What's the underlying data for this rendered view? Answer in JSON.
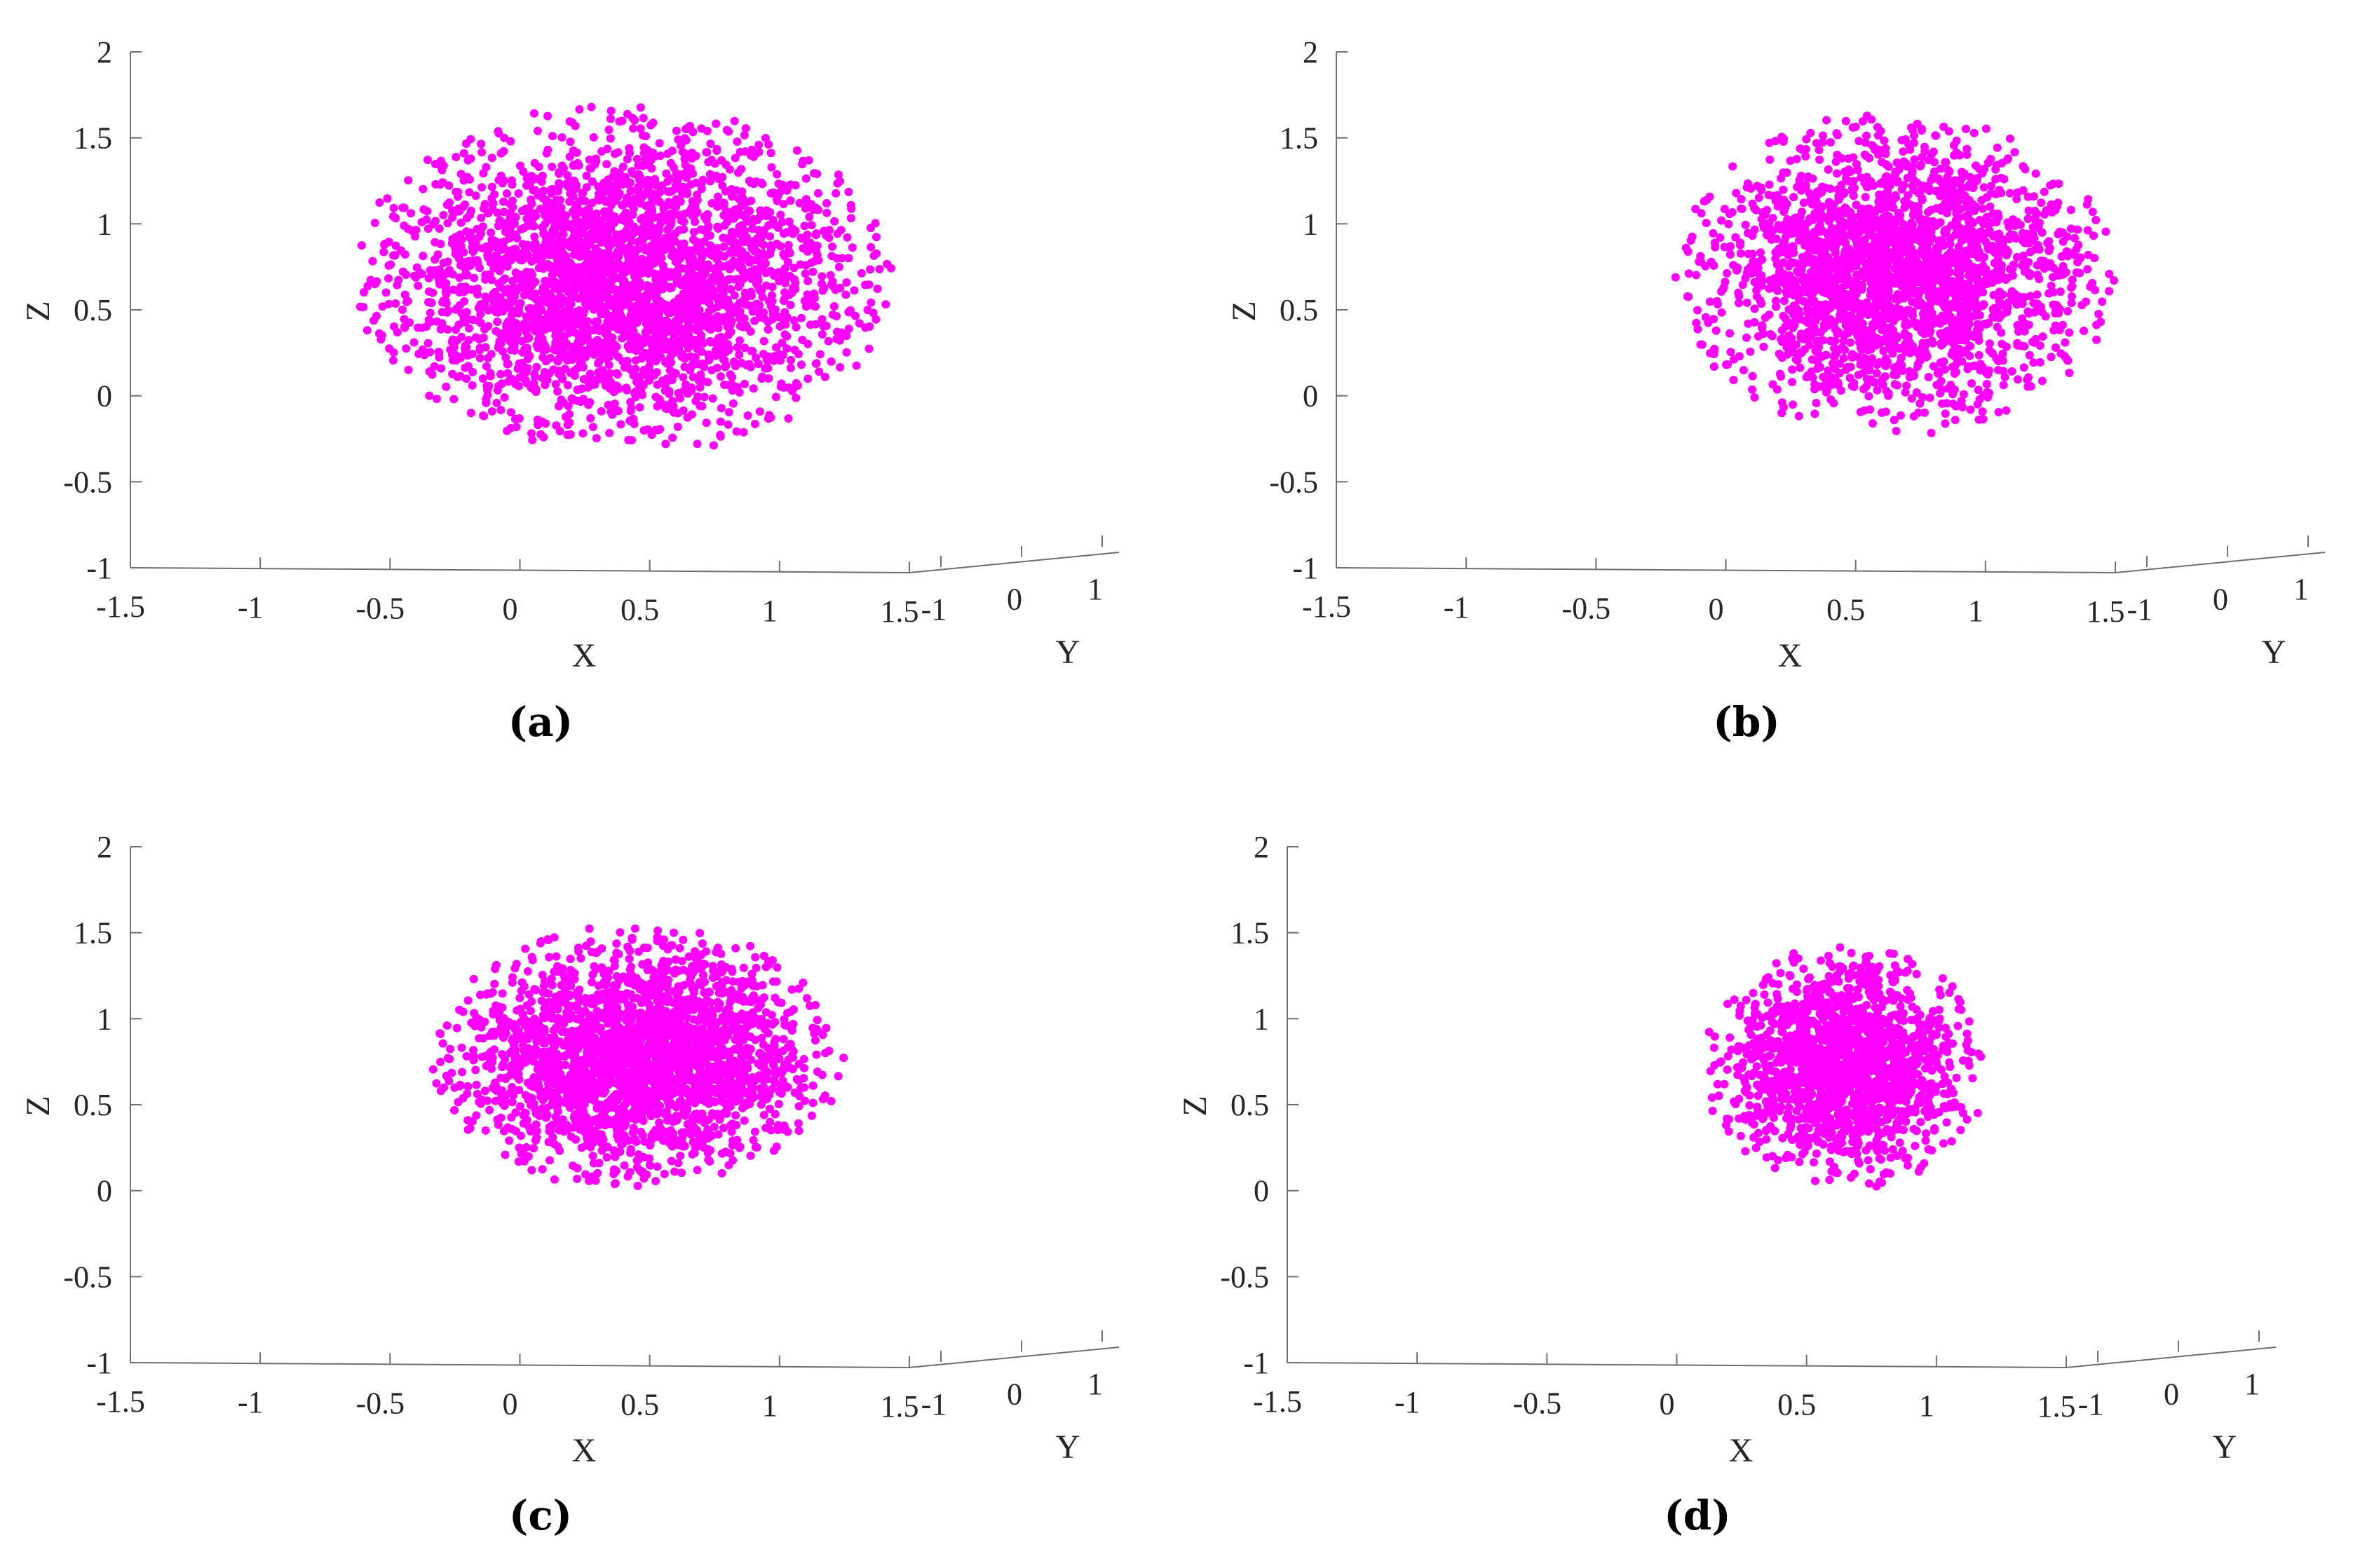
{
  "figure": {
    "point_color": "#ff00ff",
    "axis_color": "#6e6e6e"
  },
  "chart_data": [
    {
      "type": "scatter",
      "subtype": "3d-scatter",
      "caption": "(a)",
      "xlabel": "X",
      "ylabel": "Y",
      "zlabel": "Z",
      "xlim": [
        -1.5,
        1.5
      ],
      "ylim": [
        -1,
        1
      ],
      "zlim": [
        -1,
        2
      ],
      "xticks": [
        "-1.5",
        "-1",
        "-0.5",
        "0",
        "0.5",
        "1",
        "1.5"
      ],
      "yticks": [
        "-1",
        "0",
        "1"
      ],
      "zticks": [
        "-1",
        "-0.5",
        "0",
        "0.5",
        "1",
        "1.5",
        "2"
      ],
      "grid": false,
      "cluster": {
        "center_x": 0.5,
        "center_z": 0.68,
        "x_range": [
          -0.65,
          1.45
        ],
        "z_range": [
          -0.35,
          1.7
        ],
        "approx_points": 3000
      },
      "marker_color": "#ff00ff"
    },
    {
      "type": "scatter",
      "subtype": "3d-scatter",
      "caption": "(b)",
      "xlabel": "X",
      "ylabel": "Y",
      "zlabel": "Z",
      "xlim": [
        -1.5,
        1.5
      ],
      "ylim": [
        -1,
        1
      ],
      "zlim": [
        -1,
        2
      ],
      "xticks": [
        "-1.5",
        "-1",
        "-0.5",
        "0",
        "0.5",
        "1",
        "1.5"
      ],
      "yticks": [
        "-1",
        "0",
        "1"
      ],
      "zticks": [
        "-1",
        "-0.5",
        "0",
        "0.5",
        "1",
        "1.5",
        "2"
      ],
      "grid": false,
      "cluster": {
        "center_x": 0.6,
        "center_z": 0.7,
        "x_range": [
          -0.2,
          1.5
        ],
        "z_range": [
          -0.25,
          1.65
        ],
        "approx_points": 2400
      },
      "marker_color": "#ff00ff"
    },
    {
      "type": "scatter",
      "subtype": "3d-scatter",
      "caption": "(c)",
      "xlabel": "X",
      "ylabel": "Y",
      "zlabel": "Z",
      "xlim": [
        -1.5,
        1.5
      ],
      "ylim": [
        -1,
        1
      ],
      "zlim": [
        -1,
        2
      ],
      "xticks": [
        "-1.5",
        "-1",
        "-0.5",
        "0",
        "0.5",
        "1",
        "1.5"
      ],
      "yticks": [
        "-1",
        "0",
        "1"
      ],
      "zticks": [
        "-1",
        "-0.5",
        "0",
        "0.5",
        "1",
        "1.5",
        "2"
      ],
      "grid": false,
      "cluster": {
        "center_x": 0.45,
        "center_z": 0.75,
        "x_range": [
          -0.35,
          1.25
        ],
        "z_range": [
          0.0,
          1.55
        ],
        "approx_points": 2400
      },
      "marker_color": "#ff00ff"
    },
    {
      "type": "scatter",
      "subtype": "3d-scatter",
      "caption": "(d)",
      "xlabel": "X",
      "ylabel": "Y",
      "zlabel": "Z",
      "xlim": [
        -1.5,
        1.5
      ],
      "ylim": [
        -1,
        1
      ],
      "zlim": [
        -1,
        2
      ],
      "xticks": [
        "-1.5",
        "-1",
        "-0.5",
        "0",
        "0.5",
        "1",
        "1.5"
      ],
      "yticks": [
        "-1",
        "0",
        "1"
      ],
      "zticks": [
        "-1",
        "-0.5",
        "0",
        "0.5",
        "1",
        "1.5",
        "2"
      ],
      "grid": false,
      "cluster": {
        "center_x": 0.65,
        "center_z": 0.75,
        "x_range": [
          0.1,
          1.2
        ],
        "z_range": [
          0.0,
          1.45
        ],
        "approx_points": 1600
      },
      "marker_color": "#ff00ff"
    }
  ]
}
